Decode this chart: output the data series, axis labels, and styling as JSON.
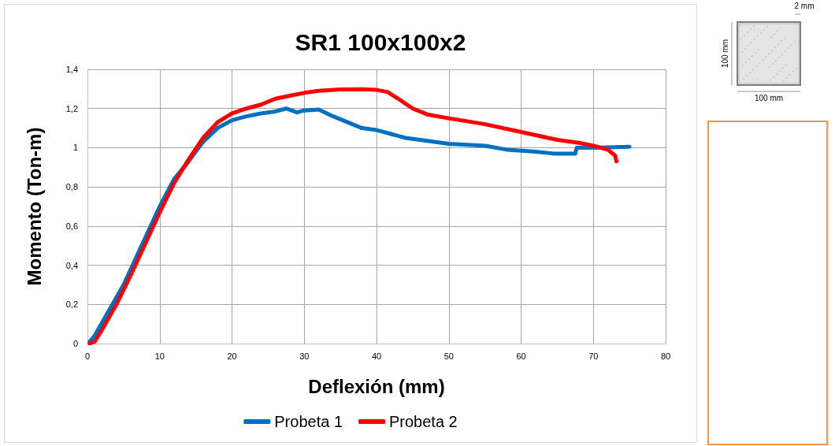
{
  "chart_data": {
    "type": "line",
    "title": "SR1 100x100x2",
    "xlabel": "Deflexión (mm)",
    "ylabel": "Momento (Ton-m)",
    "xlim": [
      0,
      80
    ],
    "xticks": [
      0,
      10,
      20,
      30,
      40,
      50,
      60,
      70,
      80
    ],
    "ylim": [
      0,
      1.4
    ],
    "yticks": [
      {
        "value": 0,
        "label": "0"
      },
      {
        "value": 0.2,
        "label": "0,2"
      },
      {
        "value": 0.4,
        "label": "0,4"
      },
      {
        "value": 0.6,
        "label": "0,6"
      },
      {
        "value": 0.8,
        "label": "0,8"
      },
      {
        "value": 1,
        "label": "1"
      },
      {
        "value": 1.2,
        "label": "1,2"
      },
      {
        "value": 1.4,
        "label": "1,4"
      }
    ],
    "grid": true,
    "legend": "bottom",
    "marker": "none",
    "line_style": "solid",
    "annotations": [
      "2 mm",
      "100 mm",
      "100 mm"
    ],
    "series": [
      {
        "name": "Probeta 1",
        "color": "#0070c0",
        "x": [
          0.3,
          1,
          3,
          5,
          7,
          10,
          12,
          14,
          16,
          18,
          20,
          22,
          24,
          26,
          27.5,
          29,
          30,
          32,
          34,
          36,
          38,
          40,
          42,
          44,
          46,
          48,
          50,
          55,
          58,
          62,
          64.5,
          67.5,
          67.7,
          70,
          75
        ],
        "values": [
          0.01,
          0.04,
          0.17,
          0.3,
          0.46,
          0.7,
          0.84,
          0.93,
          1.03,
          1.1,
          1.14,
          1.16,
          1.175,
          1.185,
          1.2,
          1.18,
          1.19,
          1.195,
          1.16,
          1.13,
          1.1,
          1.09,
          1.07,
          1.05,
          1.04,
          1.03,
          1.02,
          1.01,
          0.99,
          0.98,
          0.97,
          0.97,
          1.0,
          1.0,
          1.005
        ]
      },
      {
        "name": "Probeta 2",
        "color": "#ff0000",
        "x": [
          0.3,
          1,
          2,
          4,
          6,
          8,
          10,
          12,
          14,
          16,
          18,
          20,
          22,
          24,
          26,
          28,
          30,
          32,
          35,
          38,
          40,
          41.5,
          43,
          45,
          47,
          50,
          55,
          60,
          65,
          68,
          70,
          72,
          73,
          73.2
        ],
        "values": [
          0,
          0.01,
          0.07,
          0.2,
          0.35,
          0.51,
          0.67,
          0.82,
          0.94,
          1.05,
          1.13,
          1.175,
          1.2,
          1.22,
          1.25,
          1.265,
          1.28,
          1.29,
          1.297,
          1.298,
          1.295,
          1.285,
          1.25,
          1.2,
          1.17,
          1.15,
          1.12,
          1.08,
          1.04,
          1.025,
          1.01,
          0.99,
          0.96,
          0.93
        ]
      }
    ]
  }
}
